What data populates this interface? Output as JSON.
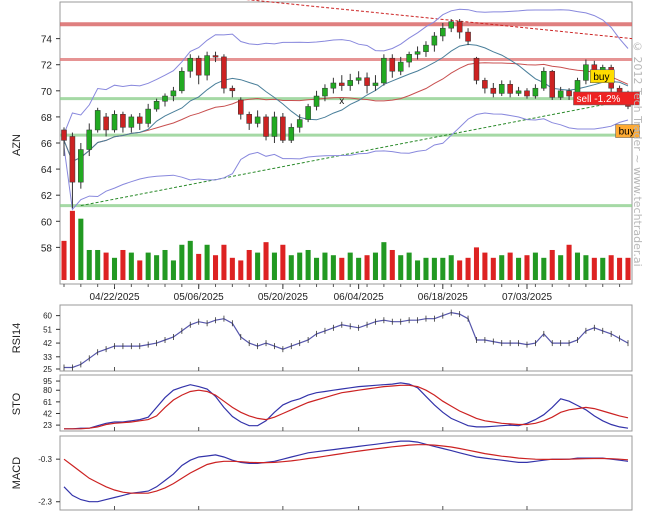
{
  "watermark": "© 2012 Tech Trader ~ www.techtrader.ai",
  "chart_data": [
    {
      "type": "candlestick",
      "ylabel": "AZN",
      "ylim": [
        55.5,
        76.5
      ],
      "price_ticks": [
        74,
        72,
        70,
        68,
        66,
        64,
        62,
        60,
        58
      ],
      "dates": [
        "04/22/2025",
        "05/06/2025",
        "05/20/2025",
        "06/04/2025",
        "06/18/2025",
        "07/03/2025"
      ],
      "date_index": [
        6,
        16,
        26,
        35,
        45,
        55
      ],
      "candles": [
        [
          67.0,
          66.2,
          65.0,
          67.2
        ],
        [
          66.5,
          63.0,
          61.0,
          66.8
        ],
        [
          63.0,
          65.5,
          62.5,
          66.0
        ],
        [
          65.5,
          67.0,
          65.0,
          67.5
        ],
        [
          67.0,
          68.5,
          66.8,
          68.7
        ],
        [
          68.0,
          67.0,
          66.5,
          68.3
        ],
        [
          67.0,
          68.2,
          66.8,
          68.5
        ],
        [
          68.2,
          67.2,
          66.8,
          68.4
        ],
        [
          67.2,
          68.0,
          66.8,
          68.2
        ],
        [
          68.0,
          67.5,
          67.0,
          68.3
        ],
        [
          67.5,
          68.6,
          67.2,
          69.0
        ],
        [
          68.6,
          69.2,
          68.4,
          69.4
        ],
        [
          69.2,
          69.6,
          68.8,
          69.8
        ],
        [
          69.6,
          70.0,
          69.2,
          70.3
        ],
        [
          70.0,
          71.5,
          69.8,
          71.8
        ],
        [
          71.5,
          72.5,
          71.0,
          72.8
        ],
        [
          72.5,
          71.2,
          70.5,
          72.7
        ],
        [
          71.2,
          72.7,
          70.8,
          73.0
        ],
        [
          72.7,
          72.6,
          72.2,
          73.0
        ],
        [
          72.6,
          70.2,
          69.8,
          72.8
        ],
        [
          70.2,
          70.0,
          69.5,
          70.4
        ],
        [
          69.3,
          68.2,
          67.8,
          69.5
        ],
        [
          68.2,
          67.5,
          67.0,
          68.4
        ],
        [
          67.5,
          68.0,
          67.2,
          68.5
        ],
        [
          68.0,
          66.5,
          66.2,
          68.2
        ],
        [
          66.5,
          68.0,
          66.0,
          68.4
        ],
        [
          68.0,
          66.2,
          66.0,
          68.3
        ],
        [
          66.2,
          67.2,
          66.0,
          67.5
        ],
        [
          67.2,
          67.8,
          66.8,
          68.2
        ],
        [
          67.8,
          68.8,
          67.6,
          69.0
        ],
        [
          68.8,
          69.6,
          68.5,
          70.0
        ],
        [
          69.6,
          70.2,
          69.2,
          70.5
        ],
        [
          70.2,
          70.6,
          69.8,
          71.0
        ],
        [
          70.6,
          70.4,
          70.0,
          71.2
        ],
        [
          70.4,
          70.8,
          70.0,
          71.3
        ],
        [
          70.8,
          71.0,
          70.5,
          71.5
        ],
        [
          71.0,
          70.4,
          69.8,
          71.4
        ],
        [
          70.4,
          70.6,
          70.0,
          71.2
        ],
        [
          70.6,
          72.5,
          70.4,
          72.8
        ],
        [
          72.5,
          71.5,
          71.0,
          72.8
        ],
        [
          71.5,
          72.2,
          71.2,
          72.6
        ],
        [
          72.2,
          72.8,
          71.8,
          73.0
        ],
        [
          72.8,
          73.0,
          72.4,
          73.4
        ],
        [
          73.0,
          73.5,
          72.6,
          73.8
        ],
        [
          73.5,
          74.2,
          73.0,
          74.5
        ],
        [
          74.2,
          74.8,
          73.8,
          75.2
        ],
        [
          74.8,
          75.3,
          74.5,
          75.5
        ],
        [
          75.3,
          74.5,
          74.0,
          75.5
        ],
        [
          74.5,
          73.8,
          73.5,
          74.8
        ],
        [
          72.5,
          70.8,
          70.5,
          72.6
        ],
        [
          70.8,
          70.2,
          69.8,
          71.0
        ],
        [
          70.2,
          69.8,
          69.5,
          70.6
        ],
        [
          69.8,
          70.5,
          69.6,
          70.8
        ],
        [
          70.5,
          69.8,
          69.5,
          70.8
        ],
        [
          69.8,
          70.0,
          69.6,
          70.3
        ],
        [
          70.0,
          69.6,
          69.4,
          70.2
        ],
        [
          69.6,
          70.2,
          69.4,
          70.5
        ],
        [
          70.2,
          71.5,
          70.0,
          71.8
        ],
        [
          71.5,
          69.5,
          69.3,
          71.6
        ],
        [
          69.5,
          70.0,
          69.3,
          70.3
        ],
        [
          70.0,
          69.6,
          69.3,
          70.2
        ],
        [
          69.6,
          70.8,
          69.4,
          71.0
        ],
        [
          70.8,
          72.0,
          70.5,
          72.4
        ],
        [
          72.0,
          71.5,
          71.0,
          72.3
        ],
        [
          71.5,
          71.8,
          71.2,
          72.0
        ],
        [
          71.8,
          70.2,
          69.8,
          72.0
        ],
        [
          70.2,
          69.6,
          69.3,
          70.4
        ],
        [
          69.6,
          68.8,
          68.6,
          70.0
        ]
      ],
      "volume": [
        58.5,
        60.8,
        60.2,
        57.8,
        57.8,
        57.6,
        57.2,
        57.8,
        57.6,
        57.0,
        57.6,
        57.4,
        57.8,
        57.0,
        58.2,
        58.5,
        57.5,
        58.2,
        57.4,
        58.2,
        57.2,
        57.0,
        57.8,
        57.6,
        58.4,
        57.6,
        58.2,
        57.4,
        57.6,
        57.8,
        57.2,
        57.6,
        57.4,
        57.2,
        57.6,
        57.2,
        57.4,
        57.6,
        58.4,
        57.8,
        57.4,
        57.6,
        57.0,
        57.2,
        57.2,
        57.2,
        57.4,
        57.0,
        57.2,
        58.0,
        57.6,
        57.2,
        57.4,
        57.6,
        57.2,
        57.4,
        57.6,
        57.2,
        57.8,
        57.4,
        58.2,
        57.6,
        57.4,
        57.2,
        57.2,
        57.4,
        57.2,
        57.2
      ],
      "markers": [
        "x",
        "buy",
        "sell -1.2%",
        "buy"
      ],
      "annotation_lines": [
        75.1,
        72.4,
        69.4,
        66.6,
        61.2
      ]
    },
    {
      "type": "line",
      "ylabel": "RSI14",
      "ylim": [
        25,
        65
      ],
      "ticks": [
        60,
        51,
        42,
        33,
        25
      ],
      "values": [
        26,
        26,
        28,
        32,
        36,
        38,
        40,
        40,
        40,
        40,
        41,
        42,
        44,
        46,
        50,
        54,
        56,
        55,
        57,
        58,
        55,
        46,
        42,
        40,
        42,
        40,
        38,
        40,
        42,
        44,
        48,
        50,
        52,
        54,
        53,
        52,
        54,
        56,
        57,
        56,
        56,
        57,
        57,
        58,
        58,
        60,
        62,
        61,
        58,
        44,
        44,
        43,
        42,
        42,
        42,
        41,
        42,
        48,
        42,
        42,
        42,
        44,
        50,
        52,
        50,
        48,
        45,
        42
      ]
    },
    {
      "type": "line",
      "ylabel": "STO",
      "ylim": [
        15,
        100
      ],
      "ticks": [
        95,
        80,
        61,
        42,
        23
      ],
      "series": [
        {
          "values": [
            17,
            17,
            18,
            18,
            22,
            26,
            28,
            28,
            30,
            32,
            36,
            52,
            68,
            80,
            85,
            89,
            86,
            82,
            70,
            52,
            37,
            28,
            22,
            22,
            30,
            44,
            56,
            62,
            66,
            72,
            76,
            78,
            80,
            82,
            84,
            86,
            87,
            88,
            89,
            90,
            92,
            90,
            84,
            70,
            56,
            44,
            34,
            28,
            22,
            20,
            20,
            21,
            22,
            23,
            22,
            26,
            32,
            40,
            52,
            66,
            62,
            55,
            48,
            38,
            30,
            24,
            20,
            18
          ]
        },
        {
          "values": [
            17,
            17,
            17,
            18,
            20,
            24,
            26,
            27,
            28,
            30,
            32,
            38,
            52,
            64,
            72,
            78,
            80,
            78,
            72,
            62,
            52,
            44,
            38,
            34,
            32,
            36,
            42,
            48,
            54,
            60,
            64,
            68,
            72,
            76,
            78,
            80,
            82,
            84,
            86,
            87,
            88,
            88,
            86,
            80,
            72,
            62,
            54,
            46,
            40,
            34,
            30,
            28,
            26,
            25,
            24,
            24,
            26,
            30,
            36,
            44,
            48,
            50,
            52,
            50,
            46,
            42,
            38,
            35
          ]
        }
      ]
    },
    {
      "type": "line",
      "ylabel": "MACD",
      "ylim": [
        -2.5,
        0.6
      ],
      "ticks": [
        -0.3,
        -2.3
      ],
      "series": [
        {
          "values": [
            -1.6,
            -2.0,
            -2.2,
            -2.3,
            -2.3,
            -2.2,
            -2.1,
            -2.0,
            -1.9,
            -1.85,
            -1.8,
            -1.6,
            -1.3,
            -1.0,
            -0.6,
            -0.35,
            -0.2,
            -0.15,
            -0.1,
            -0.2,
            -0.35,
            -0.45,
            -0.5,
            -0.5,
            -0.45,
            -0.4,
            -0.3,
            -0.2,
            -0.1,
            0.0,
            0.05,
            0.1,
            0.15,
            0.2,
            0.25,
            0.3,
            0.35,
            0.4,
            0.45,
            0.5,
            0.55,
            0.55,
            0.5,
            0.4,
            0.3,
            0.2,
            0.1,
            0.0,
            -0.1,
            -0.2,
            -0.25,
            -0.3,
            -0.35,
            -0.4,
            -0.45,
            -0.45,
            -0.4,
            -0.35,
            -0.3,
            -0.3,
            -0.3,
            -0.25,
            -0.25,
            -0.25,
            -0.25,
            -0.3,
            -0.35,
            -0.4
          ]
        },
        {
          "values": [
            -0.3,
            -0.6,
            -0.9,
            -1.2,
            -1.4,
            -1.6,
            -1.75,
            -1.85,
            -1.9,
            -1.9,
            -1.9,
            -1.8,
            -1.65,
            -1.45,
            -1.2,
            -0.95,
            -0.75,
            -0.55,
            -0.45,
            -0.4,
            -0.4,
            -0.42,
            -0.45,
            -0.46,
            -0.46,
            -0.45,
            -0.42,
            -0.38,
            -0.33,
            -0.27,
            -0.22,
            -0.16,
            -0.1,
            -0.04,
            0.02,
            0.08,
            0.13,
            0.18,
            0.23,
            0.28,
            0.32,
            0.36,
            0.38,
            0.38,
            0.36,
            0.32,
            0.27,
            0.2,
            0.12,
            0.04,
            -0.04,
            -0.1,
            -0.16,
            -0.2,
            -0.25,
            -0.28,
            -0.3,
            -0.31,
            -0.31,
            -0.31,
            -0.3,
            -0.29,
            -0.28,
            -0.27,
            -0.27,
            -0.28,
            -0.3,
            -0.33
          ]
        }
      ]
    }
  ]
}
